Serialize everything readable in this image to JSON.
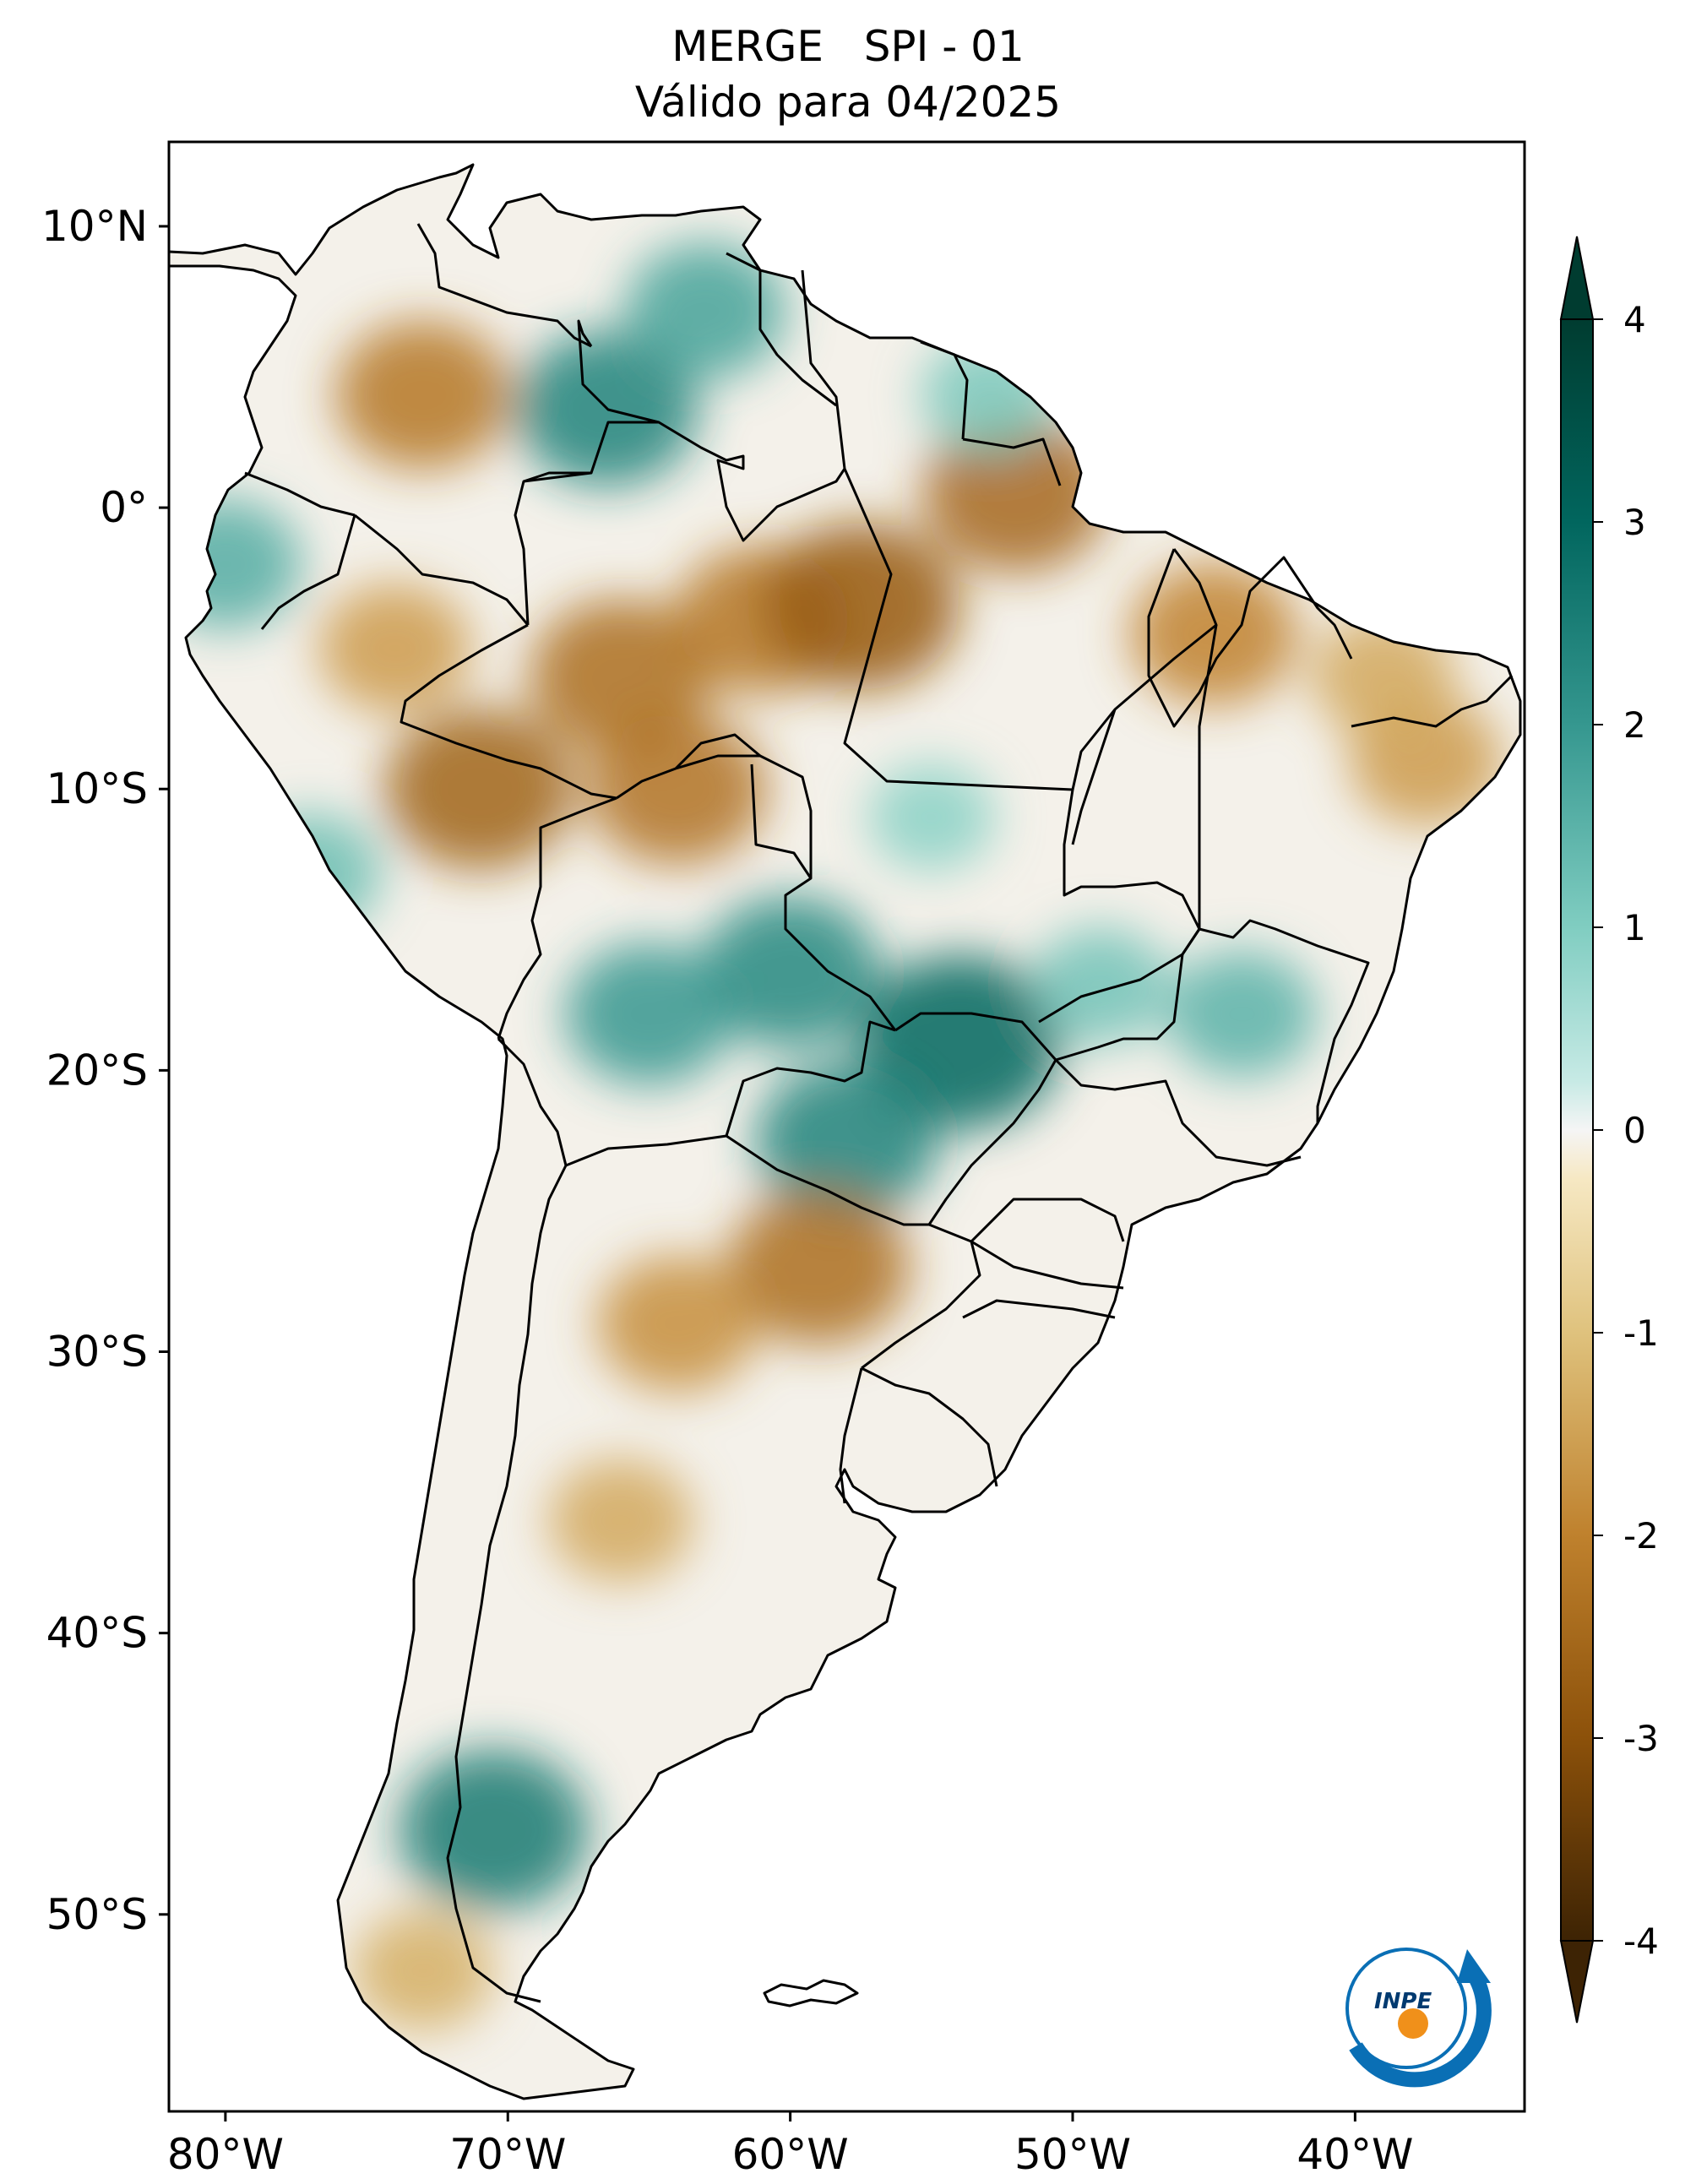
{
  "title": {
    "line1": "MERGE   SPI - 01",
    "line2": "Válido para 04/2025"
  },
  "map": {
    "region": "South America",
    "variable": "SPI - 01",
    "lon_range": [
      -82,
      -34
    ],
    "lat_range": [
      -57,
      13
    ],
    "lon_ticks": [
      {
        "value": -80,
        "label": "80°W"
      },
      {
        "value": -70,
        "label": "70°W"
      },
      {
        "value": -60,
        "label": "60°W"
      },
      {
        "value": -50,
        "label": "50°W"
      },
      {
        "value": -40,
        "label": "40°W"
      }
    ],
    "lat_ticks": [
      {
        "value": 10,
        "label": "10°N"
      },
      {
        "value": 0,
        "label": "0°"
      },
      {
        "value": -10,
        "label": "10°S"
      },
      {
        "value": -20,
        "label": "20°S"
      },
      {
        "value": -30,
        "label": "30°S"
      },
      {
        "value": -40,
        "label": "40°S"
      },
      {
        "value": -50,
        "label": "50°S"
      }
    ],
    "anomalies": [
      {
        "lon": -73,
        "lat": 4,
        "value": -2.2
      },
      {
        "lon": -66.5,
        "lat": 3.5,
        "value": 2.4
      },
      {
        "lon": -63,
        "lat": 7,
        "value": 1.8
      },
      {
        "lon": -74,
        "lat": -5,
        "value": -1.6
      },
      {
        "lon": -66,
        "lat": -6,
        "value": -2.4
      },
      {
        "lon": -61,
        "lat": -4,
        "value": -2.2
      },
      {
        "lon": -57.5,
        "lat": -3.5,
        "value": -2.8
      },
      {
        "lon": -52,
        "lat": 0.5,
        "value": -2.5
      },
      {
        "lon": -45,
        "lat": -4.5,
        "value": -2.0
      },
      {
        "lon": -71,
        "lat": -10,
        "value": -2.6
      },
      {
        "lon": -64,
        "lat": -10,
        "value": -2.3
      },
      {
        "lon": -60,
        "lat": -16.5,
        "value": 2.3
      },
      {
        "lon": -65,
        "lat": -18,
        "value": 2.0
      },
      {
        "lon": -54,
        "lat": -19,
        "value": 3.0
      },
      {
        "lon": -58,
        "lat": -22.5,
        "value": 2.4
      },
      {
        "lon": -44,
        "lat": -18,
        "value": 1.5
      },
      {
        "lon": -59,
        "lat": -27,
        "value": -2.4
      },
      {
        "lon": -64,
        "lat": -29,
        "value": -1.8
      },
      {
        "lon": -66,
        "lat": -36,
        "value": -1.4
      },
      {
        "lon": -70.5,
        "lat": -47,
        "value": 2.6
      },
      {
        "lon": -73,
        "lat": -52,
        "value": -1.3
      },
      {
        "lon": -37.5,
        "lat": -9,
        "value": -1.6
      },
      {
        "lon": -39,
        "lat": -6,
        "value": -1.4
      },
      {
        "lon": -80,
        "lat": -2,
        "value": 1.6
      },
      {
        "lon": -77,
        "lat": -13,
        "value": 1.3
      },
      {
        "lon": -55,
        "lat": -11,
        "value": 0.9
      },
      {
        "lon": -49,
        "lat": -17,
        "value": 1.2
      },
      {
        "lon": -53,
        "lat": 4,
        "value": 1.1
      }
    ]
  },
  "colorbar": {
    "min": -4,
    "max": 4,
    "ticks": [
      {
        "value": 4,
        "label": "4"
      },
      {
        "value": 3,
        "label": "3"
      },
      {
        "value": 2,
        "label": "2"
      },
      {
        "value": 1,
        "label": "1"
      },
      {
        "value": 0,
        "label": "0"
      },
      {
        "value": -1,
        "label": "-1"
      },
      {
        "value": -2,
        "label": "-2"
      },
      {
        "value": -3,
        "label": "-3"
      },
      {
        "value": -4,
        "label": "-4"
      }
    ],
    "colors": {
      "dry_extreme": "#3d2304",
      "dry_strong": "#8c510a",
      "dry_moderate": "#bf812d",
      "dry_light": "#dfc27d",
      "dry_faint": "#f6e8c3",
      "neutral": "#f5f5f5",
      "wet_faint": "#c7eae5",
      "wet_light": "#80cdc1",
      "wet_moderate": "#35978f",
      "wet_strong": "#01665e",
      "wet_extreme": "#003c30"
    }
  },
  "logo": {
    "text": "INPE",
    "ring_color": "#0a6fb5",
    "dot_color": "#f0901a"
  }
}
